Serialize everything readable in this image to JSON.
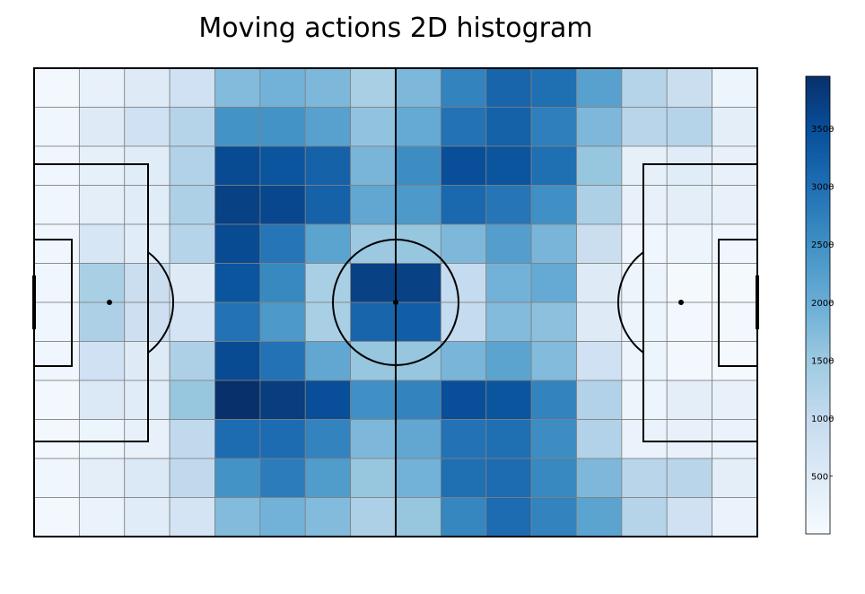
{
  "chart_data": {
    "type": "heatmap",
    "title": "Moving actions 2D histogram",
    "xlabel": "",
    "ylabel": "",
    "grid": true,
    "colormap": "Blues",
    "colorbar": {
      "min": 0,
      "max": 3950,
      "ticks": [
        500,
        1000,
        1500,
        2000,
        2500,
        3000,
        3500
      ],
      "position": "right"
    },
    "bins_x": 16,
    "bins_y": 12,
    "values": [
      [
        100,
        300,
        500,
        800,
        1750,
        1900,
        1800,
        1350,
        1800,
        2700,
        3150,
        3000,
        2200,
        1200,
        900,
        200
      ],
      [
        150,
        500,
        800,
        1200,
        2450,
        2450,
        2200,
        1600,
        2050,
        2950,
        3200,
        2750,
        1800,
        1150,
        1200,
        400
      ],
      [
        150,
        350,
        450,
        1250,
        3550,
        3400,
        3200,
        1850,
        2550,
        3500,
        3400,
        3000,
        1550,
        350,
        450,
        300
      ],
      [
        150,
        400,
        450,
        1300,
        3700,
        3600,
        3200,
        2100,
        2350,
        3100,
        2900,
        2500,
        1300,
        300,
        400,
        300
      ],
      [
        150,
        650,
        450,
        1200,
        3550,
        2900,
        2150,
        1500,
        1550,
        1800,
        2250,
        1850,
        900,
        150,
        200,
        150
      ],
      [
        150,
        1350,
        900,
        500,
        3400,
        2600,
        1350,
        3700,
        3700,
        1000,
        1900,
        2050,
        500,
        200,
        50,
        50
      ],
      [
        150,
        1300,
        850,
        700,
        2950,
        2350,
        1350,
        3150,
        3250,
        1000,
        1750,
        1650,
        500,
        200,
        100,
        100
      ],
      [
        150,
        800,
        500,
        1300,
        3550,
        2950,
        2100,
        1550,
        1550,
        1850,
        2150,
        1750,
        800,
        200,
        100,
        50
      ],
      [
        100,
        550,
        450,
        1550,
        3950,
        3750,
        3500,
        2500,
        2700,
        3500,
        3400,
        2700,
        1250,
        200,
        400,
        300
      ],
      [
        100,
        200,
        300,
        1050,
        3050,
        3050,
        2700,
        1800,
        2100,
        2950,
        3000,
        2550,
        1250,
        250,
        300,
        250
      ],
      [
        150,
        400,
        550,
        1050,
        2450,
        2800,
        2300,
        1550,
        1900,
        3000,
        3050,
        2600,
        1800,
        1150,
        1150,
        400
      ],
      [
        100,
        250,
        450,
        700,
        1750,
        1900,
        1750,
        1300,
        1550,
        2650,
        3050,
        2700,
        2150,
        1200,
        800,
        250
      ]
    ]
  }
}
